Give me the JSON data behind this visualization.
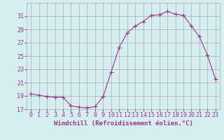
{
  "x": [
    0,
    1,
    2,
    3,
    4,
    5,
    6,
    7,
    8,
    9,
    10,
    11,
    12,
    13,
    14,
    15,
    16,
    17,
    18,
    19,
    20,
    21,
    22,
    23
  ],
  "y": [
    19.3,
    19.1,
    18.9,
    18.8,
    18.8,
    17.5,
    17.3,
    17.2,
    17.4,
    18.9,
    22.6,
    26.3,
    28.5,
    29.5,
    30.2,
    31.1,
    31.2,
    31.7,
    31.3,
    31.1,
    29.5,
    27.9,
    25.1,
    21.5
  ],
  "line_color": "#993399",
  "marker": "+",
  "marker_size": 4,
  "background_color": "#d5efef",
  "grid_color": "#aaaaaa",
  "xlabel": "Windchill (Refroidissement éolien,°C)",
  "ylabel": "",
  "ylim": [
    17,
    33
  ],
  "xlim_left": -0.5,
  "xlim_right": 23.5,
  "yticks": [
    17,
    19,
    21,
    23,
    25,
    27,
    29,
    31
  ],
  "xticks": [
    0,
    1,
    2,
    3,
    4,
    5,
    6,
    7,
    8,
    9,
    10,
    11,
    12,
    13,
    14,
    15,
    16,
    17,
    18,
    19,
    20,
    21,
    22,
    23
  ],
  "tick_color": "#993399",
  "label_color": "#993399",
  "xlabel_fontsize": 6.5,
  "axis_fontsize": 6.0,
  "linewidth": 0.8
}
